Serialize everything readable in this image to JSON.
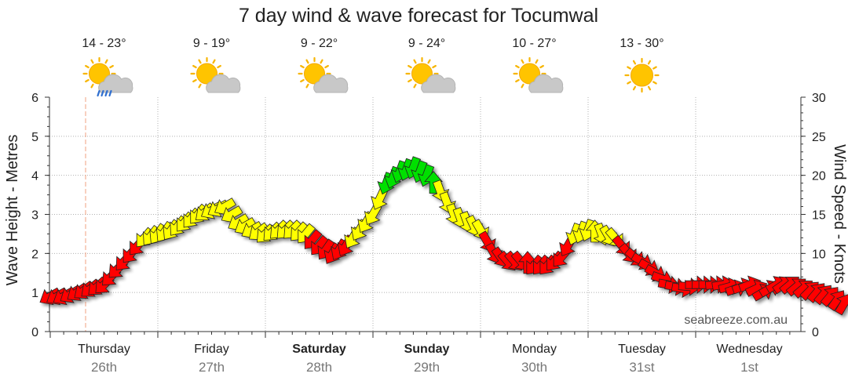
{
  "chart_data": {
    "type": "line",
    "title": "7 day wind & wave forecast for Tocumwal",
    "y_left_label": "Wave Height - Metres",
    "y_right_label": "Wind Speed - Knots",
    "y_left_range": [
      0,
      6
    ],
    "y_left_ticks": [
      "0",
      "1",
      "2",
      "3",
      "4",
      "5",
      "6"
    ],
    "y_right_range": [
      0,
      30
    ],
    "y_right_ticks": [
      "0",
      "5",
      "10",
      "15",
      "20",
      "25",
      "30"
    ],
    "grid": true,
    "watermark": "seabreeze.com.au",
    "days": [
      {
        "name": "Thursday",
        "date": "26th",
        "bold": false,
        "temp": "14 - 23°",
        "icon": "rain-cloud-sun-icon"
      },
      {
        "name": "Friday",
        "date": "27th",
        "bold": false,
        "temp": "9 - 19°",
        "icon": "partly-cloudy-icon"
      },
      {
        "name": "Saturday",
        "date": "28th",
        "bold": true,
        "temp": "9 - 22°",
        "icon": "partly-cloudy-icon"
      },
      {
        "name": "Sunday",
        "date": "29th",
        "bold": true,
        "temp": "9 - 24°",
        "icon": "partly-cloudy-icon"
      },
      {
        "name": "Monday",
        "date": "30th",
        "bold": false,
        "temp": "10 - 27°",
        "icon": "partly-cloudy-icon"
      },
      {
        "name": "Tuesday",
        "date": "31st",
        "bold": false,
        "temp": "13 - 30°",
        "icon": "sun-icon"
      },
      {
        "name": "Wednesday",
        "date": "1st",
        "bold": false,
        "temp": "",
        "icon": ""
      }
    ],
    "wind_colors": {
      "low": "#ff0000",
      "mid": "#ffff00",
      "high": "#00e000"
    },
    "wind_series": {
      "name": "Wind Speed",
      "unit": "knots",
      "x_hours": [
        0,
        3,
        6,
        9,
        12,
        15,
        18,
        21,
        24,
        27,
        30,
        33,
        36,
        39,
        42,
        45,
        48,
        51,
        54,
        57,
        60,
        63,
        66,
        69,
        72,
        75,
        78,
        81,
        84,
        87,
        90,
        93,
        96,
        99,
        102,
        105,
        108,
        111,
        114,
        117,
        120,
        123,
        126,
        129,
        132,
        135,
        138,
        141,
        144,
        147,
        150,
        153,
        156,
        159,
        162,
        165,
        168,
        171,
        174,
        177
      ],
      "speed": [
        4.5,
        4.5,
        5,
        5.5,
        6,
        8,
        10,
        12,
        12.5,
        13,
        14,
        15,
        15.5,
        16,
        14,
        13,
        12.5,
        13,
        13,
        12.5,
        11,
        10,
        11,
        13,
        15,
        19,
        20.5,
        21,
        20,
        18,
        15,
        14,
        13,
        10,
        9,
        9,
        8.5,
        8.5,
        9.5,
        12.5,
        13,
        12.5,
        12,
        10,
        9,
        7.5,
        6,
        5.5,
        6,
        6,
        6,
        5.5,
        6,
        5,
        6,
        6,
        5.5,
        5,
        4.5,
        3.5
      ],
      "direction_deg": [
        60,
        60,
        55,
        50,
        45,
        45,
        40,
        40,
        35,
        35,
        40,
        40,
        60,
        60,
        60,
        60,
        45,
        45,
        45,
        40,
        40,
        30,
        30,
        30,
        30,
        20,
        20,
        20,
        20,
        340,
        340,
        340,
        330,
        330,
        320,
        320,
        40,
        40,
        40,
        20,
        20,
        340,
        320,
        320,
        300,
        300,
        280,
        280,
        270,
        270,
        260,
        250,
        250,
        240,
        240,
        230,
        230,
        220,
        220,
        210
      ]
    },
    "wave_series": {
      "name": "Wave Height",
      "unit": "metres",
      "values": []
    }
  }
}
